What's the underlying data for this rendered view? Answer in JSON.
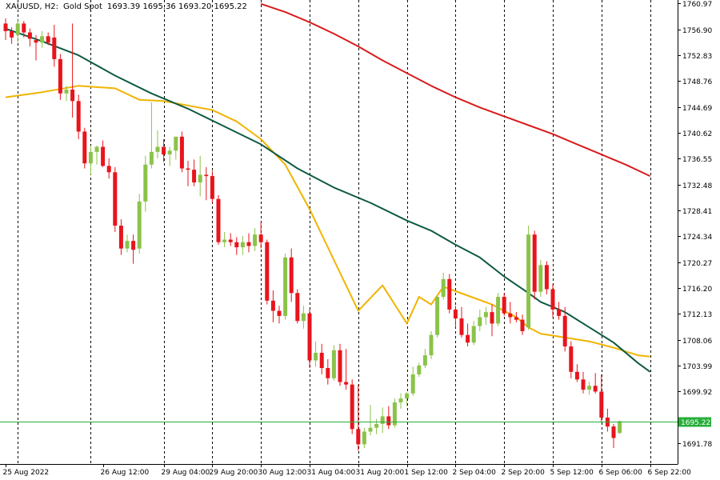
{
  "header": {
    "symbol": "XAUUSD, H2:",
    "description": "Gold Spot",
    "ohlc": "1693.39 1695.36 1693.20 1695.22"
  },
  "current_price_label": "1695.22",
  "colors": {
    "background": "#ffffff",
    "bull": "#8bc34a",
    "bear": "#e8141c",
    "ma_short": "#f0b400",
    "ma_mid": "#0f5a44",
    "ma_long": "#d91c1c",
    "price_line": "#27ae3a",
    "grid": "#000000",
    "axis": "#000000"
  },
  "chart_data": {
    "type": "candlestick",
    "symbol": "XAUUSD",
    "timeframe": "H2",
    "ylim": [
      1688.5,
      1761.5
    ],
    "y_ticks": [
      "1760.97",
      "1756.90",
      "1752.83",
      "1748.76",
      "1744.69",
      "1740.62",
      "1736.55",
      "1732.48",
      "1728.41",
      "1724.34",
      "1720.27",
      "1716.20",
      "1712.13",
      "1708.06",
      "1703.99",
      "1699.92",
      "1691.78"
    ],
    "x_ticks": [
      {
        "label": "25 Aug 2022",
        "bar": 0
      },
      {
        "label": "26 Aug 12:00",
        "bar": 16
      },
      {
        "label": "29 Aug 04:00",
        "bar": 26
      },
      {
        "label": "29 Aug 20:00",
        "bar": 34
      },
      {
        "label": "30 Aug 12:00",
        "bar": 42
      },
      {
        "label": "31 Aug 04:00",
        "bar": 50
      },
      {
        "label": "31 Aug 20:00",
        "bar": 58
      },
      {
        "label": "1 Sep 12:00",
        "bar": 66
      },
      {
        "label": "2 Sep 04:00",
        "bar": 74
      },
      {
        "label": "2 Sep 20:00",
        "bar": 82
      },
      {
        "label": "5 Sep 12:00",
        "bar": 90
      },
      {
        "label": "6 Sep 06:00",
        "bar": 98
      },
      {
        "label": "6 Sep 22:00",
        "bar": 106
      }
    ],
    "grid_bars": [
      2,
      14,
      26,
      34,
      42,
      50,
      58,
      66,
      74,
      82,
      90,
      98,
      106
    ],
    "candles": [
      {
        "o": 1757.8,
        "h": 1758.6,
        "l": 1755.2,
        "c": 1756.6
      },
      {
        "o": 1756.6,
        "h": 1757.2,
        "l": 1754.6,
        "c": 1755.6
      },
      {
        "o": 1756.0,
        "h": 1758.6,
        "l": 1754.8,
        "c": 1757.8
      },
      {
        "o": 1757.8,
        "h": 1758.2,
        "l": 1755.6,
        "c": 1756.4
      },
      {
        "o": 1756.4,
        "h": 1757.0,
        "l": 1754.2,
        "c": 1755.4
      },
      {
        "o": 1755.2,
        "h": 1756.0,
        "l": 1752.0,
        "c": 1754.8
      },
      {
        "o": 1754.8,
        "h": 1756.6,
        "l": 1754.0,
        "c": 1755.8
      },
      {
        "o": 1755.8,
        "h": 1756.4,
        "l": 1754.4,
        "c": 1754.8
      },
      {
        "o": 1755.6,
        "h": 1757.6,
        "l": 1751.0,
        "c": 1752.2
      },
      {
        "o": 1752.2,
        "h": 1753.0,
        "l": 1745.8,
        "c": 1746.8
      },
      {
        "o": 1746.8,
        "h": 1748.0,
        "l": 1745.6,
        "c": 1747.4
      },
      {
        "o": 1747.4,
        "h": 1757.8,
        "l": 1743.0,
        "c": 1745.6
      },
      {
        "o": 1745.6,
        "h": 1746.6,
        "l": 1739.6,
        "c": 1740.8
      },
      {
        "o": 1740.8,
        "h": 1741.4,
        "l": 1735.0,
        "c": 1735.8
      },
      {
        "o": 1735.8,
        "h": 1738.6,
        "l": 1734.0,
        "c": 1737.6
      },
      {
        "o": 1737.6,
        "h": 1738.6,
        "l": 1735.6,
        "c": 1738.4
      },
      {
        "o": 1738.4,
        "h": 1739.4,
        "l": 1735.2,
        "c": 1735.4
      },
      {
        "o": 1735.4,
        "h": 1736.6,
        "l": 1733.4,
        "c": 1734.4
      },
      {
        "o": 1734.4,
        "h": 1735.2,
        "l": 1725.0,
        "c": 1726.0
      },
      {
        "o": 1726.0,
        "h": 1727.0,
        "l": 1721.4,
        "c": 1722.4
      },
      {
        "o": 1722.4,
        "h": 1724.6,
        "l": 1721.8,
        "c": 1723.6
      },
      {
        "o": 1723.6,
        "h": 1724.6,
        "l": 1720.0,
        "c": 1722.2
      },
      {
        "o": 1722.4,
        "h": 1731.0,
        "l": 1721.6,
        "c": 1729.8
      },
      {
        "o": 1729.8,
        "h": 1737.0,
        "l": 1728.2,
        "c": 1735.6
      },
      {
        "o": 1735.6,
        "h": 1745.4,
        "l": 1735.0,
        "c": 1737.6
      },
      {
        "o": 1737.6,
        "h": 1741.0,
        "l": 1736.6,
        "c": 1738.4
      },
      {
        "o": 1738.4,
        "h": 1739.6,
        "l": 1736.0,
        "c": 1737.2
      },
      {
        "o": 1737.2,
        "h": 1738.4,
        "l": 1735.4,
        "c": 1737.8
      },
      {
        "o": 1737.8,
        "h": 1739.6,
        "l": 1736.4,
        "c": 1740.0
      },
      {
        "o": 1740.0,
        "h": 1740.8,
        "l": 1734.4,
        "c": 1735.0
      },
      {
        "o": 1735.0,
        "h": 1736.2,
        "l": 1732.2,
        "c": 1734.8
      },
      {
        "o": 1734.8,
        "h": 1736.4,
        "l": 1732.2,
        "c": 1732.8
      },
      {
        "o": 1732.8,
        "h": 1737.0,
        "l": 1730.6,
        "c": 1734.0
      },
      {
        "o": 1734.0,
        "h": 1735.2,
        "l": 1730.0,
        "c": 1733.8
      },
      {
        "o": 1733.8,
        "h": 1734.6,
        "l": 1729.6,
        "c": 1730.2
      },
      {
        "o": 1730.2,
        "h": 1730.8,
        "l": 1723.0,
        "c": 1723.4
      },
      {
        "o": 1723.4,
        "h": 1725.0,
        "l": 1722.6,
        "c": 1723.8
      },
      {
        "o": 1723.8,
        "h": 1724.8,
        "l": 1722.8,
        "c": 1723.4
      },
      {
        "o": 1723.4,
        "h": 1724.2,
        "l": 1721.4,
        "c": 1722.6
      },
      {
        "o": 1722.6,
        "h": 1724.4,
        "l": 1721.4,
        "c": 1723.4
      },
      {
        "o": 1723.4,
        "h": 1724.8,
        "l": 1721.8,
        "c": 1722.8
      },
      {
        "o": 1722.8,
        "h": 1725.6,
        "l": 1722.0,
        "c": 1724.6
      },
      {
        "o": 1724.6,
        "h": 1726.6,
        "l": 1722.4,
        "c": 1723.4
      },
      {
        "o": 1723.4,
        "h": 1723.8,
        "l": 1713.6,
        "c": 1714.2
      },
      {
        "o": 1714.2,
        "h": 1715.8,
        "l": 1710.8,
        "c": 1712.6
      },
      {
        "o": 1712.6,
        "h": 1713.4,
        "l": 1710.6,
        "c": 1711.8
      },
      {
        "o": 1711.8,
        "h": 1721.6,
        "l": 1711.2,
        "c": 1721.0
      },
      {
        "o": 1721.0,
        "h": 1722.4,
        "l": 1714.0,
        "c": 1715.4
      },
      {
        "o": 1715.4,
        "h": 1716.0,
        "l": 1710.6,
        "c": 1711.0
      },
      {
        "o": 1711.0,
        "h": 1713.4,
        "l": 1709.8,
        "c": 1712.2
      },
      {
        "o": 1712.2,
        "h": 1712.8,
        "l": 1703.6,
        "c": 1704.8
      },
      {
        "o": 1704.8,
        "h": 1707.8,
        "l": 1703.8,
        "c": 1706.0
      },
      {
        "o": 1706.0,
        "h": 1707.4,
        "l": 1702.6,
        "c": 1703.6
      },
      {
        "o": 1703.6,
        "h": 1705.0,
        "l": 1701.0,
        "c": 1702.0
      },
      {
        "o": 1702.0,
        "h": 1707.2,
        "l": 1701.6,
        "c": 1706.4
      },
      {
        "o": 1706.4,
        "h": 1707.4,
        "l": 1700.8,
        "c": 1701.4
      },
      {
        "o": 1701.4,
        "h": 1706.6,
        "l": 1700.2,
        "c": 1701.0
      },
      {
        "o": 1701.0,
        "h": 1701.8,
        "l": 1693.2,
        "c": 1694.0
      },
      {
        "o": 1694.0,
        "h": 1701.0,
        "l": 1690.6,
        "c": 1691.6
      },
      {
        "o": 1691.6,
        "h": 1694.2,
        "l": 1691.0,
        "c": 1693.6
      },
      {
        "o": 1693.6,
        "h": 1697.8,
        "l": 1693.0,
        "c": 1694.2
      },
      {
        "o": 1694.2,
        "h": 1695.6,
        "l": 1693.2,
        "c": 1694.8
      },
      {
        "o": 1694.8,
        "h": 1697.4,
        "l": 1693.4,
        "c": 1696.0
      },
      {
        "o": 1696.0,
        "h": 1697.6,
        "l": 1694.0,
        "c": 1694.6
      },
      {
        "o": 1694.6,
        "h": 1698.8,
        "l": 1694.2,
        "c": 1698.2
      },
      {
        "o": 1698.2,
        "h": 1699.6,
        "l": 1697.2,
        "c": 1698.8
      },
      {
        "o": 1698.8,
        "h": 1699.8,
        "l": 1697.6,
        "c": 1699.6
      },
      {
        "o": 1699.6,
        "h": 1703.8,
        "l": 1699.2,
        "c": 1702.6
      },
      {
        "o": 1702.6,
        "h": 1704.4,
        "l": 1702.2,
        "c": 1704.0
      },
      {
        "o": 1704.0,
        "h": 1706.6,
        "l": 1703.6,
        "c": 1705.6
      },
      {
        "o": 1705.6,
        "h": 1709.4,
        "l": 1705.0,
        "c": 1708.8
      },
      {
        "o": 1708.8,
        "h": 1715.0,
        "l": 1708.4,
        "c": 1714.8
      },
      {
        "o": 1714.8,
        "h": 1718.6,
        "l": 1714.4,
        "c": 1717.6
      },
      {
        "o": 1717.6,
        "h": 1718.4,
        "l": 1712.2,
        "c": 1712.8
      },
      {
        "o": 1712.8,
        "h": 1713.4,
        "l": 1710.0,
        "c": 1711.4
      },
      {
        "o": 1711.4,
        "h": 1713.2,
        "l": 1708.4,
        "c": 1708.8
      },
      {
        "o": 1708.8,
        "h": 1710.6,
        "l": 1707.0,
        "c": 1707.6
      },
      {
        "o": 1707.6,
        "h": 1711.0,
        "l": 1707.2,
        "c": 1710.2
      },
      {
        "o": 1710.2,
        "h": 1712.8,
        "l": 1709.4,
        "c": 1711.6
      },
      {
        "o": 1711.6,
        "h": 1713.2,
        "l": 1710.4,
        "c": 1712.4
      },
      {
        "o": 1712.4,
        "h": 1713.6,
        "l": 1708.6,
        "c": 1710.6
      },
      {
        "o": 1710.6,
        "h": 1715.4,
        "l": 1710.2,
        "c": 1714.8
      },
      {
        "o": 1714.8,
        "h": 1715.4,
        "l": 1711.8,
        "c": 1712.2
      },
      {
        "o": 1712.2,
        "h": 1714.0,
        "l": 1710.6,
        "c": 1711.6
      },
      {
        "o": 1711.6,
        "h": 1712.4,
        "l": 1710.8,
        "c": 1711.2
      },
      {
        "o": 1711.2,
        "h": 1712.0,
        "l": 1708.8,
        "c": 1709.4
      },
      {
        "o": 1710.0,
        "h": 1726.0,
        "l": 1709.6,
        "c": 1724.6
      },
      {
        "o": 1724.6,
        "h": 1725.2,
        "l": 1714.4,
        "c": 1715.6
      },
      {
        "o": 1715.6,
        "h": 1720.6,
        "l": 1714.8,
        "c": 1719.8
      },
      {
        "o": 1719.8,
        "h": 1720.4,
        "l": 1715.2,
        "c": 1716.0
      },
      {
        "o": 1716.0,
        "h": 1716.8,
        "l": 1711.6,
        "c": 1712.8
      },
      {
        "o": 1712.8,
        "h": 1714.0,
        "l": 1711.2,
        "c": 1711.8
      },
      {
        "o": 1711.8,
        "h": 1713.2,
        "l": 1706.2,
        "c": 1707.0
      },
      {
        "o": 1707.0,
        "h": 1707.8,
        "l": 1702.0,
        "c": 1703.0
      },
      {
        "o": 1703.0,
        "h": 1704.2,
        "l": 1701.4,
        "c": 1701.8
      },
      {
        "o": 1701.8,
        "h": 1703.0,
        "l": 1699.6,
        "c": 1700.2
      },
      {
        "o": 1700.2,
        "h": 1701.4,
        "l": 1699.4,
        "c": 1700.8
      },
      {
        "o": 1700.8,
        "h": 1702.8,
        "l": 1699.6,
        "c": 1699.9
      },
      {
        "o": 1699.9,
        "h": 1702.6,
        "l": 1695.0,
        "c": 1695.8
      },
      {
        "o": 1695.8,
        "h": 1697.2,
        "l": 1693.6,
        "c": 1694.4
      },
      {
        "o": 1694.4,
        "h": 1694.8,
        "l": 1691.0,
        "c": 1692.6
      },
      {
        "o": 1693.39,
        "h": 1695.36,
        "l": 1693.2,
        "c": 1695.22
      }
    ],
    "moving_averages": [
      {
        "color_key": "ma_short",
        "points": [
          [
            0,
            1746.2
          ],
          [
            6,
            1747.0
          ],
          [
            12,
            1748.0
          ],
          [
            18,
            1747.6
          ],
          [
            22,
            1745.8
          ],
          [
            26,
            1745.6
          ],
          [
            34,
            1744.2
          ],
          [
            38,
            1742.4
          ],
          [
            42,
            1739.6
          ],
          [
            46,
            1735.6
          ],
          [
            50,
            1728.6
          ],
          [
            54,
            1720.6
          ],
          [
            58,
            1712.6
          ],
          [
            62,
            1716.6
          ],
          [
            66,
            1710.6
          ],
          [
            68,
            1714.8
          ],
          [
            70,
            1713.6
          ],
          [
            72,
            1716.4
          ],
          [
            76,
            1715.0
          ],
          [
            80,
            1713.6
          ],
          [
            84,
            1711.6
          ],
          [
            86,
            1710.0
          ],
          [
            88,
            1709.0
          ],
          [
            92,
            1708.4
          ],
          [
            96,
            1707.8
          ],
          [
            100,
            1706.8
          ],
          [
            104,
            1705.6
          ],
          [
            106,
            1705.4
          ]
        ]
      },
      {
        "color_key": "ma_mid",
        "points": [
          [
            0,
            1757.0
          ],
          [
            6,
            1755.0
          ],
          [
            12,
            1752.8
          ],
          [
            18,
            1749.6
          ],
          [
            24,
            1746.8
          ],
          [
            30,
            1744.4
          ],
          [
            36,
            1741.6
          ],
          [
            42,
            1738.8
          ],
          [
            48,
            1735.0
          ],
          [
            54,
            1732.0
          ],
          [
            60,
            1729.6
          ],
          [
            66,
            1726.8
          ],
          [
            70,
            1725.2
          ],
          [
            74,
            1723.0
          ],
          [
            78,
            1721.0
          ],
          [
            82,
            1718.0
          ],
          [
            86,
            1715.4
          ],
          [
            88,
            1714.0
          ],
          [
            92,
            1712.4
          ],
          [
            96,
            1710.0
          ],
          [
            100,
            1707.6
          ],
          [
            104,
            1704.4
          ],
          [
            106,
            1703.0
          ]
        ]
      },
      {
        "color_key": "ma_long",
        "points": [
          [
            42,
            1760.9
          ],
          [
            46,
            1759.6
          ],
          [
            50,
            1758.0
          ],
          [
            54,
            1756.2
          ],
          [
            58,
            1754.2
          ],
          [
            62,
            1752.0
          ],
          [
            66,
            1750.0
          ],
          [
            70,
            1748.0
          ],
          [
            74,
            1746.2
          ],
          [
            78,
            1744.6
          ],
          [
            82,
            1743.2
          ],
          [
            86,
            1741.8
          ],
          [
            90,
            1740.4
          ],
          [
            94,
            1738.8
          ],
          [
            98,
            1737.2
          ],
          [
            102,
            1735.6
          ],
          [
            106,
            1733.8
          ]
        ]
      }
    ],
    "current_price": 1695.22
  }
}
